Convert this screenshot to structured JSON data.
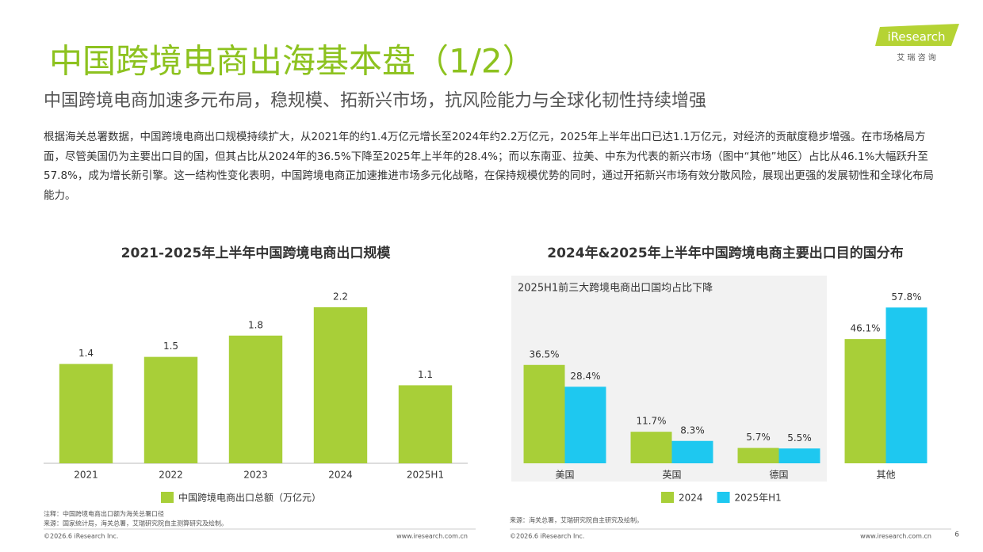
{
  "header": {
    "title": "中国跨境电商出海基本盘（1/2）",
    "subtitle": "中国跨境电商加速多元布局，稳规模、拓新兴市场，抗风险能力与全球化韧性持续增强",
    "logo": "iResearch",
    "logo_sub": "艾 瑞 咨 询"
  },
  "body": "根据海关总署数据，中国跨境电商出口规模持续扩大，从2021年的约1.4万亿元增长至2024年约2.2万亿元，2025年上半年出口已达1.1万亿元，对经济的贡献度稳步增强。在市场格局方面，尽管美国仍为主要出口目的国，但其占比从2024年的36.5%下降至2025年上半年的28.4%；而以东南亚、拉美、中东为代表的新兴市场（图中“其他”地区）占比从46.1%大幅跃升至57.8%，成为增长新引擎。这一结构性变化表明，中国跨境电商正加速推进市场多元化战略，在保持规模优势的同时，通过开拓新兴市场有效分散风险，展现出更强的发展韧性和全球化布局能力。",
  "chart_data": [
    {
      "type": "bar",
      "title": "2021-2025年上半年中国跨境电商出口规模",
      "categories": [
        "2021",
        "2022",
        "2023",
        "2024",
        "2025H1"
      ],
      "series": [
        {
          "name": "中国跨境电商出口总额（万亿元）",
          "color": "#a8cf38",
          "values": [
            1.4,
            1.5,
            1.8,
            2.2,
            1.1
          ]
        }
      ],
      "ylim": [
        0,
        2.4
      ]
    },
    {
      "type": "bar",
      "title": "2024年&2025年上半年中国跨境电商主要出口目的国分布",
      "annotation": "2025H1前三大跨境电商出口国均占比下降",
      "categories": [
        "美国",
        "英国",
        "德国",
        "其他"
      ],
      "series": [
        {
          "name": "2024",
          "color": "#a8cf38",
          "values": [
            36.5,
            11.7,
            5.7,
            46.1
          ],
          "value_labels": [
            "36.5%",
            "11.7%",
            "5.7%",
            "46.1%"
          ]
        },
        {
          "name": "2025年H1",
          "color": "#1ec8f0",
          "values": [
            28.4,
            8.3,
            5.5,
            57.8
          ],
          "value_labels": [
            "28.4%",
            "8.3%",
            "5.5%",
            "57.8%"
          ]
        }
      ],
      "ylim": [
        0,
        62
      ]
    }
  ],
  "footer": {
    "note": "注释：中国跨境电商出口额为海关总署口径",
    "source_left": "来源：国家统计局，海关总署，艾瑞研究院自主测算研究及绘制。",
    "source_right": "来源：海关总署，艾瑞研究院自主研究及绘制。",
    "copyright_left": "©2026.6 iResearch Inc.",
    "url_left": "www.iresearch.com.cn",
    "copyright_right": "©2026.6 iResearch Inc.",
    "url_right": "www.iresearch.com.cn",
    "page": "6"
  }
}
